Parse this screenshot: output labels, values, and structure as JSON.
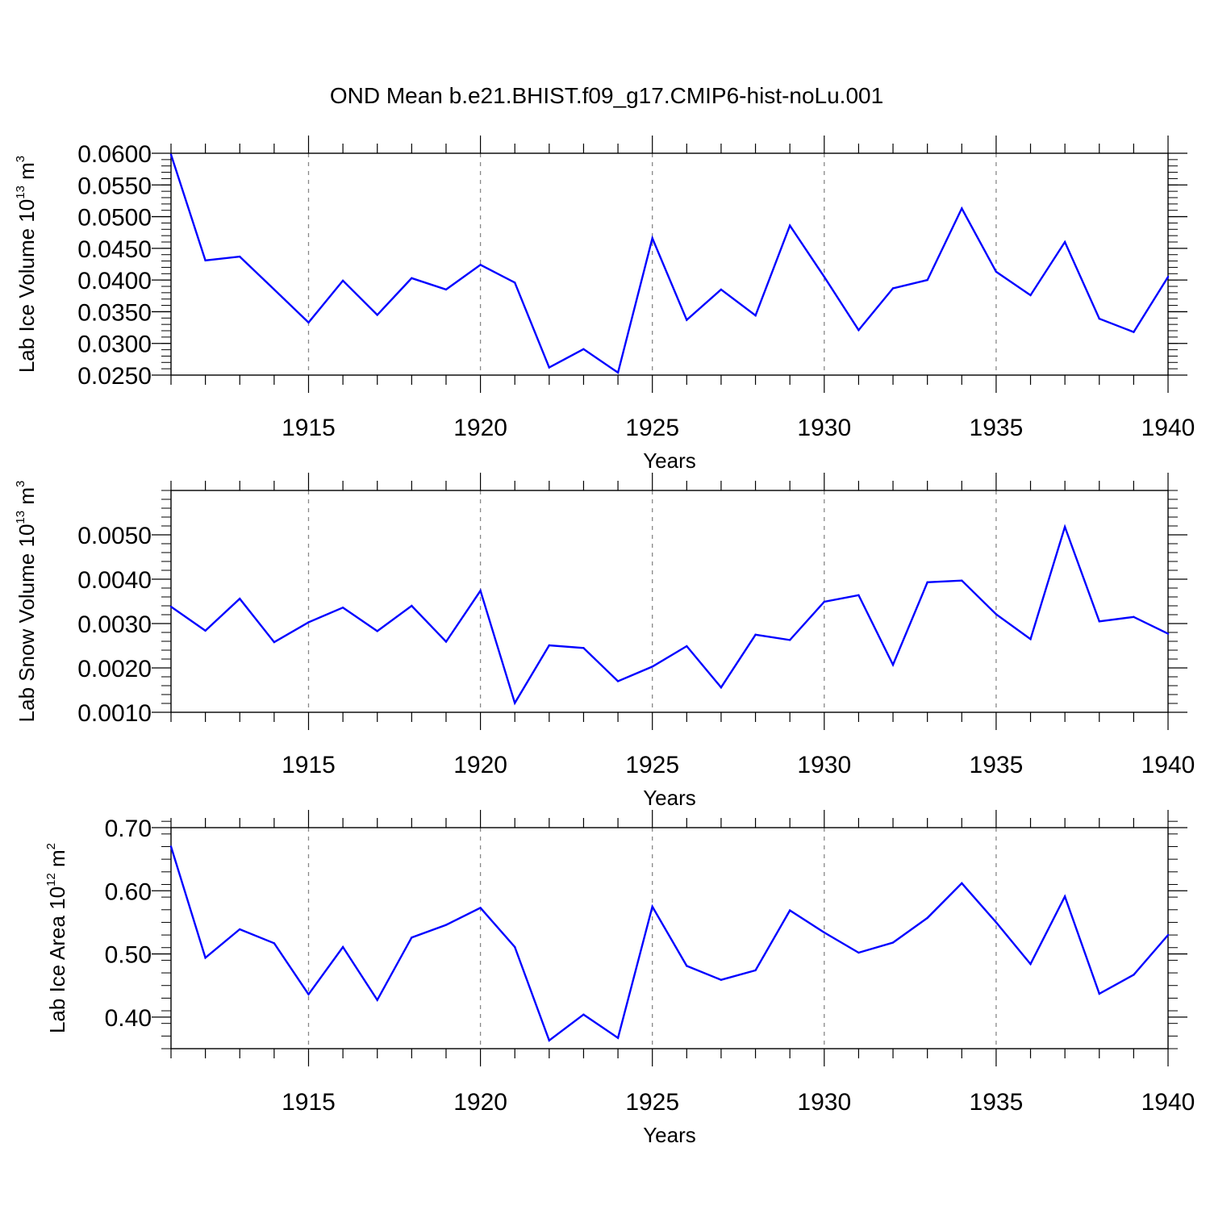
{
  "title": "OND Mean b.e21.BHIST.f09_g17.CMIP6-hist-noLu.001",
  "line_color": "#0000ff",
  "chart_data": [
    {
      "type": "line",
      "ylabel": {
        "prefix": "Lab Ice Volume 10",
        "exp": "13",
        "unit": " m",
        "unit_exp": "3"
      },
      "xlabel": "Years",
      "x": [
        1911,
        1912,
        1913,
        1914,
        1915,
        1916,
        1917,
        1918,
        1919,
        1920,
        1921,
        1922,
        1923,
        1924,
        1925,
        1926,
        1927,
        1928,
        1929,
        1930,
        1931,
        1932,
        1933,
        1934,
        1935,
        1936,
        1937,
        1938,
        1939,
        1940
      ],
      "values": [
        0.0598,
        0.0431,
        0.0437,
        0.0385,
        0.0333,
        0.0399,
        0.0345,
        0.0403,
        0.0385,
        0.0424,
        0.0396,
        0.0262,
        0.0291,
        0.0254,
        0.0466,
        0.0337,
        0.0385,
        0.0344,
        0.0486,
        0.0405,
        0.0321,
        0.0387,
        0.04,
        0.0513,
        0.0413,
        0.0376,
        0.046,
        0.0339,
        0.0318,
        0.0405
      ],
      "xlim": [
        1911,
        1940
      ],
      "ylim": [
        0.025,
        0.06
      ],
      "xticks": [
        "1915",
        "1920",
        "1925",
        "1930",
        "1935",
        "1940"
      ],
      "yticks": [
        "0.0250",
        "0.0300",
        "0.0350",
        "0.0400",
        "0.0450",
        "0.0500",
        "0.0550",
        "0.0600"
      ],
      "ytick_values": [
        0.025,
        0.03,
        0.035,
        0.04,
        0.045,
        0.05,
        0.055,
        0.06
      ],
      "yminor_step": 0.001
    },
    {
      "type": "line",
      "ylabel": {
        "prefix": "Lab Snow Volume 10",
        "exp": "13",
        "unit": " m",
        "unit_exp": "3"
      },
      "xlabel": "Years",
      "x": [
        1911,
        1912,
        1913,
        1914,
        1915,
        1916,
        1917,
        1918,
        1919,
        1920,
        1921,
        1922,
        1923,
        1924,
        1925,
        1926,
        1927,
        1928,
        1929,
        1930,
        1931,
        1932,
        1933,
        1934,
        1935,
        1936,
        1937,
        1938,
        1939,
        1940
      ],
      "values": [
        0.00338,
        0.00284,
        0.00356,
        0.00258,
        0.00303,
        0.00336,
        0.00283,
        0.0034,
        0.00259,
        0.00374,
        0.00121,
        0.00251,
        0.00245,
        0.0017,
        0.00203,
        0.00249,
        0.00156,
        0.00275,
        0.00263,
        0.00349,
        0.00364,
        0.00207,
        0.00393,
        0.00397,
        0.00321,
        0.00265,
        0.00518,
        0.00305,
        0.00315,
        0.00277
      ],
      "xlim": [
        1911,
        1940
      ],
      "ylim": [
        0.001,
        0.006
      ],
      "xticks": [
        "1915",
        "1920",
        "1925",
        "1930",
        "1935",
        "1940"
      ],
      "yticks": [
        "0.0010",
        "0.0020",
        "0.0030",
        "0.0040",
        "0.0050"
      ],
      "ytick_values": [
        0.001,
        0.002,
        0.003,
        0.004,
        0.005
      ],
      "yminor_step": 0.0002
    },
    {
      "type": "line",
      "ylabel": {
        "prefix": "Lab Ice Area 10",
        "exp": "12",
        "unit": " m",
        "unit_exp": "2"
      },
      "xlabel": "Years",
      "x": [
        1911,
        1912,
        1913,
        1914,
        1915,
        1916,
        1917,
        1918,
        1919,
        1920,
        1921,
        1922,
        1923,
        1924,
        1925,
        1926,
        1927,
        1928,
        1929,
        1930,
        1931,
        1932,
        1933,
        1934,
        1935,
        1936,
        1937,
        1938,
        1939,
        1940
      ],
      "values": [
        0.67,
        0.494,
        0.539,
        0.517,
        0.436,
        0.511,
        0.427,
        0.526,
        0.546,
        0.573,
        0.511,
        0.363,
        0.404,
        0.367,
        0.575,
        0.481,
        0.459,
        0.474,
        0.569,
        0.534,
        0.502,
        0.518,
        0.557,
        0.612,
        0.55,
        0.484,
        0.591,
        0.437,
        0.467,
        0.53
      ],
      "xlim": [
        1911,
        1940
      ],
      "ylim": [
        0.35,
        0.7
      ],
      "xticks": [
        "1915",
        "1920",
        "1925",
        "1930",
        "1935",
        "1940"
      ],
      "yticks": [
        "0.40",
        "0.50",
        "0.60",
        "0.70"
      ],
      "ytick_values": [
        0.4,
        0.5,
        0.6,
        0.7
      ],
      "yminor_step": 0.02
    }
  ]
}
